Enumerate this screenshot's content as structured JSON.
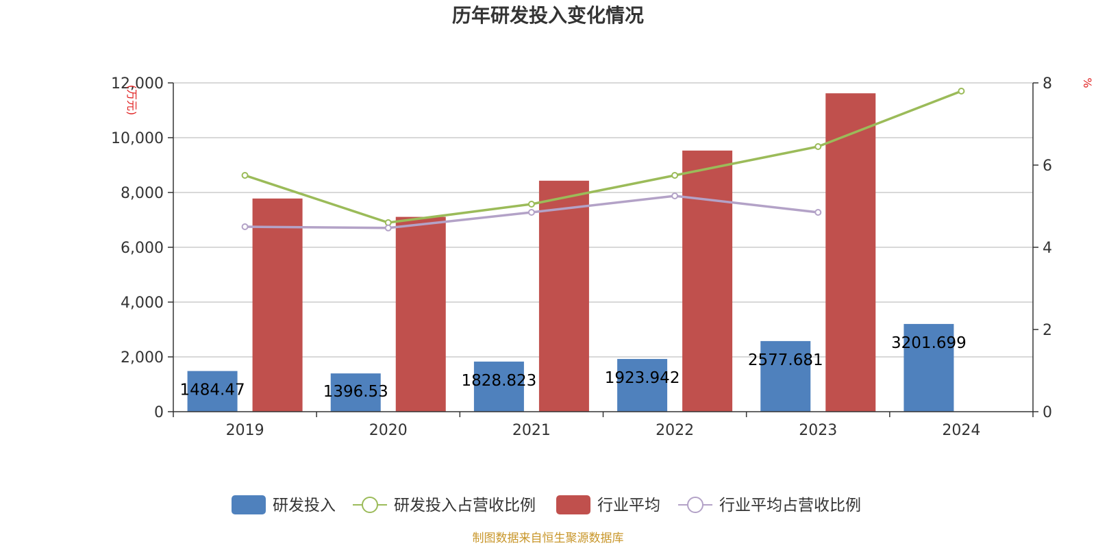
{
  "chart_data": {
    "type": "bar",
    "title": "历年研发投入变化情况",
    "categories": [
      "2019",
      "2020",
      "2021",
      "2022",
      "2023",
      "2024"
    ],
    "left_axis": {
      "unit": "万元",
      "min": 0,
      "max": 12000,
      "ticks": [
        0,
        2000,
        4000,
        6000,
        8000,
        10000,
        12000
      ],
      "tick_labels": [
        "0",
        "2,000",
        "4,000",
        "6,000",
        "8,000",
        "10,000",
        "12,000"
      ]
    },
    "right_axis": {
      "unit": "%",
      "min": 0,
      "max": 8,
      "ticks": [
        0,
        2,
        4,
        6,
        8
      ],
      "tick_labels": [
        "0",
        "2",
        "4",
        "6",
        "8"
      ]
    },
    "grid": true,
    "legend_position": "bottom",
    "series": [
      {
        "name": "研发投入",
        "type": "bar",
        "axis": "left",
        "color": "#4f81bd",
        "values": [
          1484.47,
          1396.53,
          1828.823,
          1923.942,
          2577.681,
          3201.699
        ],
        "labels": [
          "1484.47",
          "1396.53",
          "1828.823",
          "1923.942",
          "2577.681",
          "3201.699"
        ]
      },
      {
        "name": "研发投入占营收比例",
        "type": "line",
        "axis": "right",
        "color": "#9bbb59",
        "values": [
          5.75,
          4.6,
          5.05,
          5.75,
          6.45,
          7.8
        ]
      },
      {
        "name": "行业平均",
        "type": "bar",
        "axis": "left",
        "color": "#c0504d",
        "values": [
          7780,
          7110,
          8430,
          9530,
          11620,
          null
        ]
      },
      {
        "name": "行业平均占营收比例",
        "type": "line",
        "axis": "right",
        "color": "#b3a2c7",
        "values": [
          4.5,
          4.47,
          4.85,
          5.25,
          4.85,
          null
        ]
      }
    ],
    "source": "制图数据来自恒生聚源数据库"
  }
}
